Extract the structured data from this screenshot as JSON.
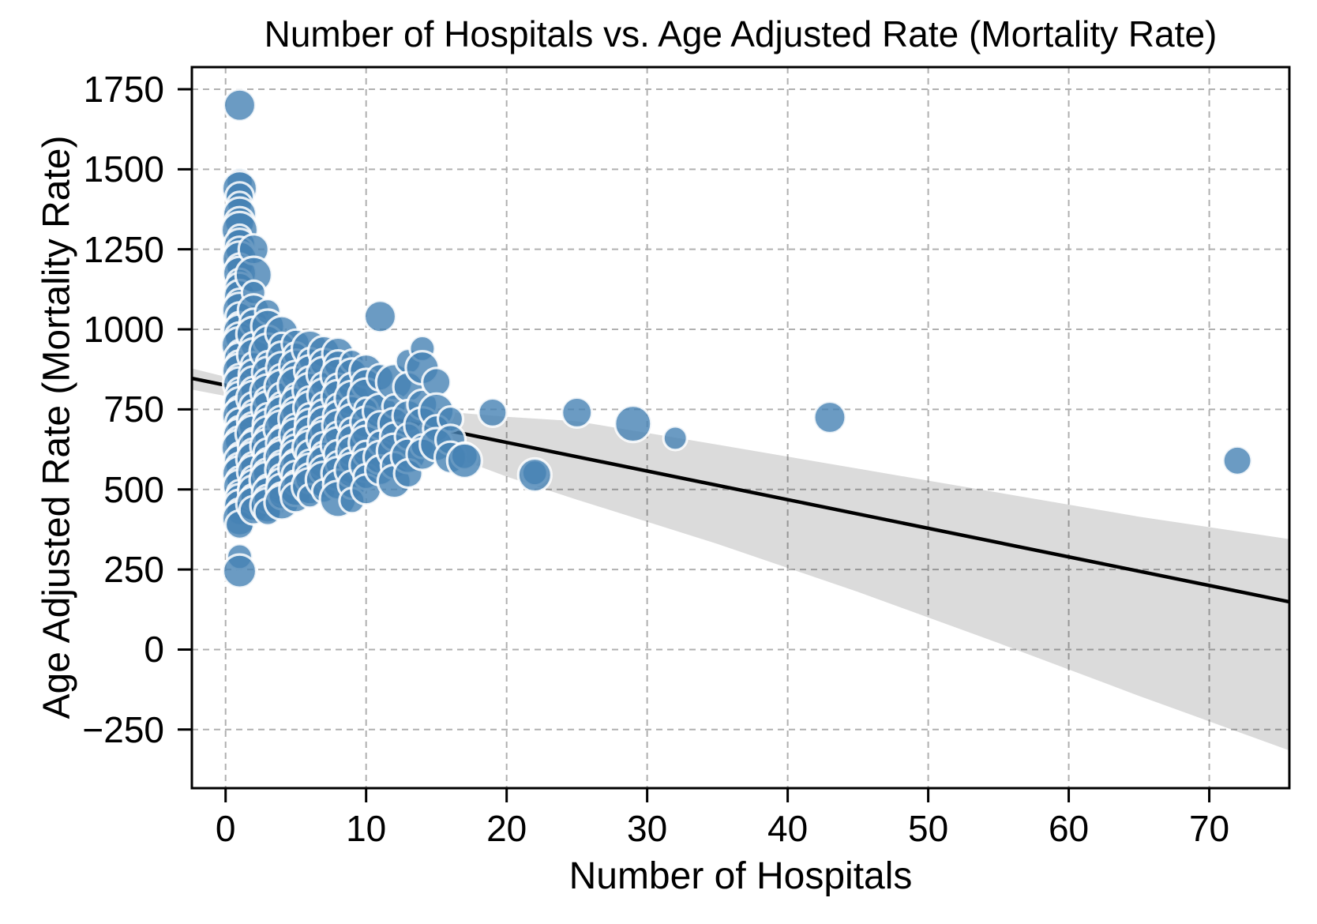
{
  "title": "Number of Hospitals vs. Age Adjusted Rate (Mortality Rate)",
  "x_axis": {
    "label": "Number of Hospitals",
    "ticks": [
      0,
      10,
      20,
      30,
      40,
      50,
      60,
      70
    ],
    "range": [
      -2.4,
      75.7
    ],
    "grid": true
  },
  "y_axis": {
    "label": "Age Adjusted Rate (Mortality Rate)",
    "ticks": [
      -250,
      0,
      250,
      500,
      750,
      1000,
      1250,
      1500,
      1750
    ],
    "tick_labels": [
      "−250",
      "0",
      "250",
      "500",
      "750",
      "1000",
      "1250",
      "1500",
      "1750"
    ],
    "range": [
      -433,
      1819
    ],
    "grid": true
  },
  "style": {
    "point_color": "#4682b4",
    "point_edge_color": "#ffffff",
    "point_opacity": 0.8,
    "point_radius_cycle": [
      20,
      17,
      22,
      18,
      16,
      21,
      19,
      23,
      15,
      20,
      18,
      22,
      17,
      21,
      16,
      19
    ],
    "line_color": "#000000",
    "band_color": "#000000",
    "band_opacity": 0.14,
    "grid_color": "#b0b0b0",
    "spine_color": "#000000",
    "background": "#ffffff"
  },
  "chart_data": {
    "type": "scatter",
    "title": "Number of Hospitals vs. Age Adjusted Rate (Mortality Rate)",
    "xlabel": "Number of Hospitals",
    "ylabel": "Age Adjusted Rate (Mortality Rate)",
    "xlim": [
      -2.4,
      75.7
    ],
    "ylim": [
      -433,
      1819
    ],
    "points": [
      [
        1,
        1700
      ],
      [
        1,
        1460
      ],
      [
        1,
        1440
      ],
      [
        1,
        1415
      ],
      [
        1,
        1390
      ],
      [
        1,
        1360
      ],
      [
        1,
        1335
      ],
      [
        1,
        1310
      ],
      [
        1,
        1290
      ],
      [
        1,
        1265
      ],
      [
        1,
        1245
      ],
      [
        1,
        1220
      ],
      [
        1,
        1195
      ],
      [
        1,
        1175
      ],
      [
        1,
        1150
      ],
      [
        1,
        1130
      ],
      [
        1,
        1105
      ],
      [
        1,
        1085
      ],
      [
        1,
        1060
      ],
      [
        1,
        1040
      ],
      [
        1,
        1015
      ],
      [
        1,
        995
      ],
      [
        1,
        975
      ],
      [
        1,
        950
      ],
      [
        1,
        930
      ],
      [
        1,
        910
      ],
      [
        1,
        890
      ],
      [
        1,
        870
      ],
      [
        1,
        850
      ],
      [
        1,
        830
      ],
      [
        1,
        810
      ],
      [
        1,
        790
      ],
      [
        1,
        770
      ],
      [
        1,
        750
      ],
      [
        1,
        730
      ],
      [
        1,
        710
      ],
      [
        1,
        690
      ],
      [
        1,
        670
      ],
      [
        1,
        650
      ],
      [
        1,
        630
      ],
      [
        1,
        610
      ],
      [
        1,
        590
      ],
      [
        1,
        570
      ],
      [
        1,
        550
      ],
      [
        1,
        530
      ],
      [
        1,
        510
      ],
      [
        1,
        490
      ],
      [
        1,
        470
      ],
      [
        1,
        450
      ],
      [
        1,
        430
      ],
      [
        1,
        410
      ],
      [
        1,
        390
      ],
      [
        1,
        290
      ],
      [
        1,
        245
      ],
      [
        2,
        1250
      ],
      [
        2,
        1170
      ],
      [
        2,
        1115
      ],
      [
        2,
        1060
      ],
      [
        2,
        1020
      ],
      [
        2,
        985
      ],
      [
        2,
        950
      ],
      [
        2,
        920
      ],
      [
        2,
        890
      ],
      [
        2,
        860
      ],
      [
        2,
        835
      ],
      [
        2,
        810
      ],
      [
        2,
        785
      ],
      [
        2,
        760
      ],
      [
        2,
        740
      ],
      [
        2,
        715
      ],
      [
        2,
        695
      ],
      [
        2,
        675
      ],
      [
        2,
        655
      ],
      [
        2,
        635
      ],
      [
        2,
        615
      ],
      [
        2,
        595
      ],
      [
        2,
        575
      ],
      [
        2,
        555
      ],
      [
        2,
        535
      ],
      [
        2,
        515
      ],
      [
        2,
        495
      ],
      [
        2,
        475
      ],
      [
        2,
        455
      ],
      [
        2,
        435
      ],
      [
        3,
        1055
      ],
      [
        3,
        1010
      ],
      [
        3,
        965
      ],
      [
        3,
        930
      ],
      [
        3,
        895
      ],
      [
        3,
        865
      ],
      [
        3,
        835
      ],
      [
        3,
        805
      ],
      [
        3,
        780
      ],
      [
        3,
        755
      ],
      [
        3,
        730
      ],
      [
        3,
        705
      ],
      [
        3,
        680
      ],
      [
        3,
        660
      ],
      [
        3,
        635
      ],
      [
        3,
        615
      ],
      [
        3,
        590
      ],
      [
        3,
        570
      ],
      [
        3,
        550
      ],
      [
        3,
        530
      ],
      [
        3,
        510
      ],
      [
        3,
        490
      ],
      [
        3,
        470
      ],
      [
        3,
        450
      ],
      [
        3,
        430
      ],
      [
        4,
        990
      ],
      [
        4,
        950
      ],
      [
        4,
        915
      ],
      [
        4,
        880
      ],
      [
        4,
        850
      ],
      [
        4,
        820
      ],
      [
        4,
        790
      ],
      [
        4,
        765
      ],
      [
        4,
        740
      ],
      [
        4,
        715
      ],
      [
        4,
        690
      ],
      [
        4,
        665
      ],
      [
        4,
        645
      ],
      [
        4,
        620
      ],
      [
        4,
        600
      ],
      [
        4,
        580
      ],
      [
        4,
        560
      ],
      [
        4,
        540
      ],
      [
        4,
        520
      ],
      [
        4,
        500
      ],
      [
        4,
        480
      ],
      [
        4,
        460
      ],
      [
        5,
        955
      ],
      [
        5,
        920
      ],
      [
        5,
        885
      ],
      [
        5,
        855
      ],
      [
        5,
        825
      ],
      [
        5,
        795
      ],
      [
        5,
        770
      ],
      [
        5,
        745
      ],
      [
        5,
        720
      ],
      [
        5,
        695
      ],
      [
        5,
        670
      ],
      [
        5,
        650
      ],
      [
        5,
        625
      ],
      [
        5,
        605
      ],
      [
        5,
        585
      ],
      [
        5,
        565
      ],
      [
        5,
        545
      ],
      [
        5,
        520
      ],
      [
        5,
        500
      ],
      [
        5,
        475
      ],
      [
        6,
        940
      ],
      [
        6,
        905
      ],
      [
        6,
        870
      ],
      [
        6,
        840
      ],
      [
        6,
        810
      ],
      [
        6,
        780
      ],
      [
        6,
        755
      ],
      [
        6,
        730
      ],
      [
        6,
        705
      ],
      [
        6,
        680
      ],
      [
        6,
        655
      ],
      [
        6,
        630
      ],
      [
        6,
        610
      ],
      [
        6,
        585
      ],
      [
        6,
        560
      ],
      [
        6,
        535
      ],
      [
        6,
        510
      ],
      [
        6,
        480
      ],
      [
        7,
        930
      ],
      [
        7,
        895
      ],
      [
        7,
        860
      ],
      [
        7,
        825
      ],
      [
        7,
        795
      ],
      [
        7,
        765
      ],
      [
        7,
        735
      ],
      [
        7,
        710
      ],
      [
        7,
        685
      ],
      [
        7,
        660
      ],
      [
        7,
        635
      ],
      [
        7,
        610
      ],
      [
        7,
        585
      ],
      [
        7,
        560
      ],
      [
        7,
        530
      ],
      [
        7,
        495
      ],
      [
        8,
        925
      ],
      [
        8,
        890
      ],
      [
        8,
        855
      ],
      [
        8,
        820
      ],
      [
        8,
        790
      ],
      [
        8,
        760
      ],
      [
        8,
        730
      ],
      [
        8,
        700
      ],
      [
        8,
        670
      ],
      [
        8,
        640
      ],
      [
        8,
        610
      ],
      [
        8,
        580
      ],
      [
        8,
        550
      ],
      [
        8,
        515
      ],
      [
        8,
        470
      ],
      [
        9,
        900
      ],
      [
        9,
        860
      ],
      [
        9,
        820
      ],
      [
        9,
        785
      ],
      [
        9,
        750
      ],
      [
        9,
        715
      ],
      [
        9,
        685
      ],
      [
        9,
        655
      ],
      [
        9,
        620
      ],
      [
        9,
        590
      ],
      [
        9,
        560
      ],
      [
        9,
        515
      ],
      [
        9,
        465
      ],
      [
        10,
        870
      ],
      [
        10,
        830
      ],
      [
        10,
        790
      ],
      [
        10,
        750
      ],
      [
        10,
        710
      ],
      [
        10,
        675
      ],
      [
        10,
        645
      ],
      [
        10,
        610
      ],
      [
        10,
        575
      ],
      [
        10,
        540
      ],
      [
        10,
        500
      ],
      [
        11,
        1040
      ],
      [
        11,
        850
      ],
      [
        11,
        745
      ],
      [
        11,
        700
      ],
      [
        11,
        645
      ],
      [
        11,
        600
      ],
      [
        11,
        560
      ],
      [
        12,
        835
      ],
      [
        12,
        760
      ],
      [
        12,
        705
      ],
      [
        12,
        665
      ],
      [
        12,
        620
      ],
      [
        12,
        575
      ],
      [
        12,
        525
      ],
      [
        13,
        900
      ],
      [
        13,
        820
      ],
      [
        13,
        730
      ],
      [
        13,
        665
      ],
      [
        13,
        605
      ],
      [
        13,
        550
      ],
      [
        14,
        940
      ],
      [
        14,
        880
      ],
      [
        14,
        765
      ],
      [
        14,
        700
      ],
      [
        14,
        635
      ],
      [
        14,
        610
      ],
      [
        15,
        835
      ],
      [
        15,
        745
      ],
      [
        15,
        690
      ],
      [
        15,
        640
      ],
      [
        16,
        720
      ],
      [
        16,
        655
      ],
      [
        16,
        600
      ],
      [
        17,
        605
      ],
      [
        17,
        590
      ],
      [
        19,
        740
      ],
      [
        22,
        552
      ],
      [
        22,
        545
      ],
      [
        25,
        740
      ],
      [
        29,
        705
      ],
      [
        32,
        660
      ],
      [
        43,
        725
      ],
      [
        72,
        590
      ]
    ],
    "regression_line": {
      "x1": -2.4,
      "y1": 847,
      "x2": 75.7,
      "y2": 149
    },
    "ci_band": {
      "top": [
        [
          -2.4,
          878
        ],
        [
          2,
          830
        ],
        [
          6,
          797
        ],
        [
          10,
          772
        ],
        [
          15,
          745
        ],
        [
          20,
          727
        ],
        [
          25,
          713
        ],
        [
          35,
          640
        ],
        [
          45,
          565
        ],
        [
          55,
          490
        ],
        [
          65,
          415
        ],
        [
          75.7,
          345
        ]
      ],
      "bottom": [
        [
          75.7,
          -315
        ],
        [
          65,
          -145
        ],
        [
          55,
          20
        ],
        [
          45,
          180
        ],
        [
          35,
          330
        ],
        [
          25,
          468
        ],
        [
          20,
          540
        ],
        [
          15,
          622
        ],
        [
          10,
          688
        ],
        [
          6,
          736
        ],
        [
          2,
          775
        ],
        [
          -2.4,
          812
        ]
      ]
    }
  }
}
